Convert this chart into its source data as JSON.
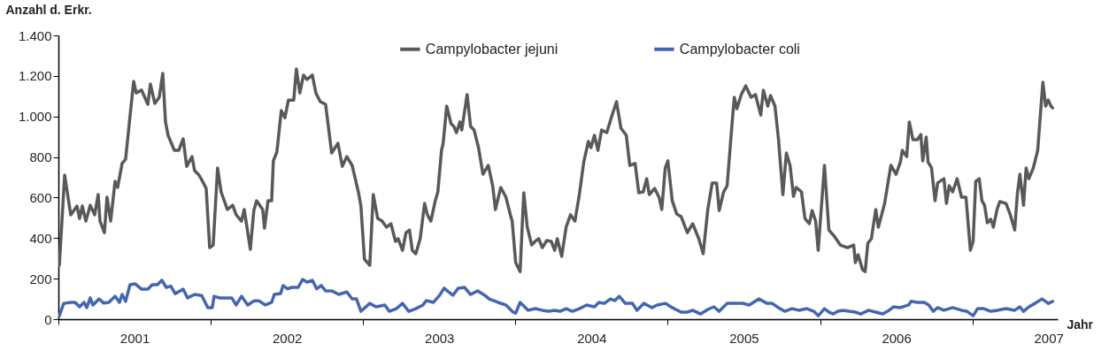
{
  "chart_data": {
    "type": "line",
    "ylabel": "Anzahl d. Erkr.",
    "xlabel": "Jahr",
    "legend": "top",
    "grid": false,
    "xlim": [
      2001,
      2007.56
    ],
    "xticks": [
      {
        "value": 2001,
        "label": null
      },
      {
        "value": 2001.5,
        "label": "2001"
      },
      {
        "value": 2002,
        "label": null
      },
      {
        "value": 2002.5,
        "label": "2002"
      },
      {
        "value": 2003,
        "label": null
      },
      {
        "value": 2003.5,
        "label": "2003"
      },
      {
        "value": 2004,
        "label": null
      },
      {
        "value": 2004.5,
        "label": "2004"
      },
      {
        "value": 2005,
        "label": null
      },
      {
        "value": 2005.5,
        "label": "2005"
      },
      {
        "value": 2006,
        "label": null
      },
      {
        "value": 2006.5,
        "label": "2006"
      },
      {
        "value": 2007,
        "label": null
      },
      {
        "value": 2007.5,
        "label": "2007"
      }
    ],
    "ylim": [
      0,
      1400
    ],
    "yticks": [
      0,
      200,
      400,
      600,
      800,
      {
        "value": 1000,
        "label": "1.000"
      },
      {
        "value": 1200,
        "label": "1.200"
      },
      {
        "value": 1400,
        "label": "1.400"
      }
    ],
    "series": [
      {
        "name": "Campylobacter jejuni",
        "color": "#58595b",
        "x": [
          2001.006,
          2001.041,
          2001.081,
          2001.122,
          2001.139,
          2001.157,
          2001.18,
          2001.209,
          2001.238,
          2001.261,
          2001.273,
          2001.302,
          2001.319,
          2001.343,
          2001.372,
          2001.389,
          2001.418,
          2001.441,
          2001.465,
          2001.494,
          2001.511,
          2001.546,
          2001.587,
          2001.604,
          2001.633,
          2001.662,
          2001.685,
          2001.703,
          2001.72,
          2001.761,
          2001.79,
          2001.819,
          2001.842,
          2001.877,
          2001.894,
          2001.923,
          2001.952,
          2001.97,
          2001.993,
          2002.016,
          2002.045,
          2002.068,
          2002.109,
          2002.144,
          2002.167,
          2002.202,
          2002.22,
          2002.26,
          2002.283,
          2002.301,
          2002.341,
          2002.353,
          2002.376,
          2002.4,
          2002.411,
          2002.434,
          2002.463,
          2002.487,
          2002.51,
          2002.545,
          2002.562,
          2002.585,
          2002.609,
          2002.632,
          2002.667,
          2002.69,
          2002.719,
          2002.754,
          2002.794,
          2002.835,
          2002.864,
          2002.893,
          2002.928,
          2002.969,
          2002.986,
          2003.009,
          2003.044,
          2003.067,
          2003.096,
          2003.125,
          2003.154,
          2003.183,
          2003.213,
          2003.23,
          2003.259,
          2003.282,
          2003.305,
          2003.323,
          2003.346,
          2003.375,
          2003.404,
          2003.422,
          2003.445,
          2003.474,
          2003.491,
          2003.515,
          2003.526,
          2003.549,
          2003.578,
          2003.596,
          2003.613,
          2003.636,
          2003.648,
          2003.683,
          2003.706,
          2003.729,
          2003.758,
          2003.787,
          2003.822,
          2003.851,
          2003.869,
          2003.904,
          2003.938,
          2003.967,
          2003.979,
          2004.002,
          2004.031,
          2004.055,
          2004.078,
          2004.107,
          2004.13,
          2004.153,
          2004.177,
          2004.206,
          2004.235,
          2004.258,
          2004.275,
          2004.304,
          2004.333,
          2004.362,
          2004.391,
          2004.42,
          2004.449,
          2004.479,
          2004.496,
          2004.519,
          2004.542,
          2004.566,
          2004.6,
          2004.635,
          2004.664,
          2004.693,
          2004.728,
          2004.751,
          2004.786,
          2004.81,
          2004.839,
          2004.862,
          2004.879,
          2004.914,
          2004.943,
          2004.961,
          2004.984,
          2005.001,
          2005.03,
          2005.059,
          2005.088,
          2005.129,
          2005.164,
          2005.204,
          2005.233,
          2005.263,
          2005.292,
          2005.321,
          2005.338,
          2005.367,
          2005.39,
          2005.419,
          2005.437,
          2005.454,
          2005.483,
          2005.512,
          2005.547,
          2005.576,
          2005.611,
          2005.628,
          2005.657,
          2005.675,
          2005.704,
          2005.727,
          2005.756,
          2005.779,
          2005.803,
          2005.826,
          2005.843,
          2005.878,
          2005.901,
          2005.93,
          2005.948,
          2005.971,
          2005.988,
          2006.029,
          2006.058,
          2006.093,
          2006.133,
          2006.18,
          2006.221,
          2006.232,
          2006.25,
          2006.279,
          2006.296,
          2006.314,
          2006.337,
          2006.366,
          2006.383,
          2006.424,
          2006.465,
          2006.499,
          2006.528,
          2006.54,
          2006.569,
          2006.586,
          2006.61,
          2006.639,
          2006.662,
          2006.674,
          2006.697,
          2006.709,
          2006.732,
          2006.755,
          2006.772,
          2006.813,
          2006.83,
          2006.848,
          2006.871,
          2006.9,
          2006.929,
          2006.958,
          2006.987,
          2007.005,
          2007.022,
          2007.045,
          2007.063,
          2007.08,
          2007.098,
          2007.121,
          2007.138,
          2007.162,
          2007.18,
          2007.221,
          2007.249,
          2007.278,
          2007.295,
          2007.312,
          2007.336,
          2007.353,
          2007.371,
          2007.4,
          2007.429,
          2007.452,
          2007.463,
          2007.481,
          2007.498,
          2007.516,
          2007.527
        ],
        "values": [
          266,
          711,
          515,
          558,
          497,
          558,
          484,
          562,
          515,
          615,
          484,
          427,
          602,
          484,
          680,
          650,
          768,
          789,
          964,
          1173,
          1116,
          1130,
          1060,
          1160,
          1064,
          1095,
          1212,
          973,
          907,
          833,
          833,
          890,
          754,
          802,
          733,
          711,
          672,
          645,
          353,
          366,
          746,
          628,
          541,
          562,
          515,
          484,
          541,
          345,
          536,
          584,
          541,
          449,
          584,
          584,
          781,
          824,
          1029,
          994,
          1081,
          1081,
          1234,
          1116,
          1204,
          1182,
          1204,
          1116,
          1073,
          1060,
          820,
          868,
          754,
          802,
          759,
          628,
          558,
          296,
          266,
          615,
          497,
          484,
          454,
          471,
          384,
          397,
          340,
          427,
          440,
          340,
          323,
          397,
          571,
          515,
          484,
          584,
          628,
          833,
          868,
          1051,
          964,
          951,
          920,
          973,
          933,
          1108,
          951,
          933,
          846,
          715,
          759,
          658,
          541,
          650,
          602,
          515,
          484,
          279,
          235,
          624,
          454,
          366,
          384,
          397,
          353,
          388,
          384,
          340,
          397,
          310,
          454,
          515,
          484,
          615,
          776,
          877,
          846,
          907,
          833,
          933,
          920,
          1007,
          1073,
          942,
          907,
          759,
          768,
          624,
          628,
          693,
          615,
          645,
          602,
          541,
          746,
          781,
          584,
          519,
          506,
          427,
          471,
          397,
          323,
          541,
          672,
          672,
          536,
          628,
          658,
          933,
          1095,
          1038,
          1108,
          1151,
          1095,
          1108,
          1007,
          1130,
          1051,
          1103,
          1051,
          890,
          615,
          820,
          759,
          606,
          650,
          628,
          497,
          471,
          536,
          484,
          340,
          759,
          440,
          410,
          366,
          353,
          366,
          279,
          318,
          244,
          235,
          375,
          397,
          541,
          454,
          571,
          759,
          715,
          776,
          833,
          802,
          973,
          885,
          885,
          911,
          781,
          898,
          776,
          746,
          584,
          672,
          693,
          571,
          658,
          628,
          693,
          602,
          602,
          340,
          384,
          680,
          693,
          584,
          562,
          475,
          493,
          454,
          541,
          580,
          571,
          515,
          440,
          615,
          715,
          562,
          746,
          693,
          746,
          833,
          1064,
          1169,
          1051,
          1081,
          1051,
          1042
        ]
      },
      {
        "name": "Campylobacter coli",
        "color": "#4466b0",
        "x": [
          2001.006,
          2001.035,
          2001.081,
          2001.11,
          2001.139,
          2001.168,
          2001.186,
          2001.209,
          2001.226,
          2001.267,
          2001.296,
          2001.331,
          2001.372,
          2001.401,
          2001.418,
          2001.441,
          2001.47,
          2001.505,
          2001.546,
          2001.587,
          2001.616,
          2001.65,
          2001.679,
          2001.708,
          2001.738,
          2001.767,
          2001.819,
          2001.848,
          2001.894,
          2001.941,
          2001.981,
          2002.01,
          2002.022,
          2002.057,
          2002.109,
          2002.138,
          2002.167,
          2002.202,
          2002.243,
          2002.283,
          2002.318,
          2002.359,
          2002.4,
          2002.417,
          2002.458,
          2002.475,
          2002.504,
          2002.533,
          2002.574,
          2002.603,
          2002.632,
          2002.667,
          2002.696,
          2002.725,
          2002.754,
          2002.794,
          2002.841,
          2002.893,
          2002.928,
          2002.957,
          2002.986,
          2003.044,
          2003.085,
          2003.143,
          2003.172,
          2003.218,
          2003.259,
          2003.3,
          2003.346,
          2003.393,
          2003.416,
          2003.462,
          2003.503,
          2003.532,
          2003.561,
          2003.59,
          2003.625,
          2003.666,
          2003.706,
          2003.753,
          2003.799,
          2003.828,
          2003.886,
          2003.938,
          2003.985,
          2004.002,
          2004.031,
          2004.084,
          2004.13,
          2004.177,
          2004.217,
          2004.258,
          2004.293,
          2004.333,
          2004.374,
          2004.42,
          2004.467,
          2004.519,
          2004.548,
          2004.583,
          2004.624,
          2004.653,
          2004.682,
          2004.722,
          2004.769,
          2004.798,
          2004.844,
          2004.897,
          2004.931,
          2004.984,
          2005.03,
          2005.088,
          2005.129,
          2005.164,
          2005.216,
          2005.263,
          2005.303,
          2005.338,
          2005.39,
          2005.437,
          2005.495,
          2005.535,
          2005.599,
          2005.652,
          2005.686,
          2005.727,
          2005.768,
          2005.814,
          2005.861,
          2005.913,
          2005.959,
          2005.988,
          2006.029,
          2006.058,
          2006.087,
          2006.116,
          2006.151,
          2006.192,
          2006.232,
          2006.267,
          2006.319,
          2006.366,
          2006.412,
          2006.453,
          2006.482,
          2006.528,
          2006.581,
          2006.598,
          2006.639,
          2006.685,
          2006.714,
          2006.743,
          2006.772,
          2006.813,
          2006.871,
          2006.929,
          2006.964,
          2007.005,
          2007.034,
          2007.075,
          2007.121,
          2007.162,
          2007.221,
          2007.278,
          2007.312,
          2007.336,
          2007.371,
          2007.411,
          2007.458,
          2007.498,
          2007.527
        ],
        "values": [
          17,
          78,
          83,
          83,
          61,
          83,
          57,
          105,
          70,
          100,
          80,
          83,
          113,
          83,
          122,
          88,
          170,
          174,
          148,
          148,
          170,
          170,
          192,
          157,
          163,
          126,
          148,
          105,
          122,
          117,
          57,
          57,
          113,
          105,
          105,
          105,
          70,
          113,
          70,
          90,
          90,
          70,
          83,
          122,
          126,
          166,
          150,
          157,
          157,
          196,
          183,
          192,
          150,
          166,
          140,
          140,
          122,
          135,
          100,
          100,
          39,
          78,
          61,
          70,
          39,
          52,
          78,
          39,
          52,
          70,
          92,
          83,
          118,
          153,
          135,
          118,
          153,
          157,
          122,
          140,
          118,
          100,
          83,
          70,
          35,
          30,
          83,
          44,
          52,
          44,
          39,
          44,
          39,
          52,
          39,
          52,
          70,
          61,
          83,
          78,
          100,
          92,
          113,
          78,
          78,
          44,
          78,
          57,
          70,
          78,
          57,
          35,
          35,
          44,
          26,
          48,
          61,
          39,
          78,
          78,
          78,
          70,
          100,
          78,
          78,
          57,
          39,
          52,
          44,
          52,
          39,
          17,
          52,
          35,
          26,
          39,
          44,
          39,
          35,
          26,
          44,
          35,
          26,
          44,
          61,
          57,
          70,
          88,
          83,
          83,
          70,
          39,
          57,
          44,
          57,
          44,
          39,
          17,
          52,
          52,
          39,
          44,
          52,
          44,
          61,
          39,
          61,
          78,
          100,
          78,
          88
        ]
      }
    ]
  }
}
